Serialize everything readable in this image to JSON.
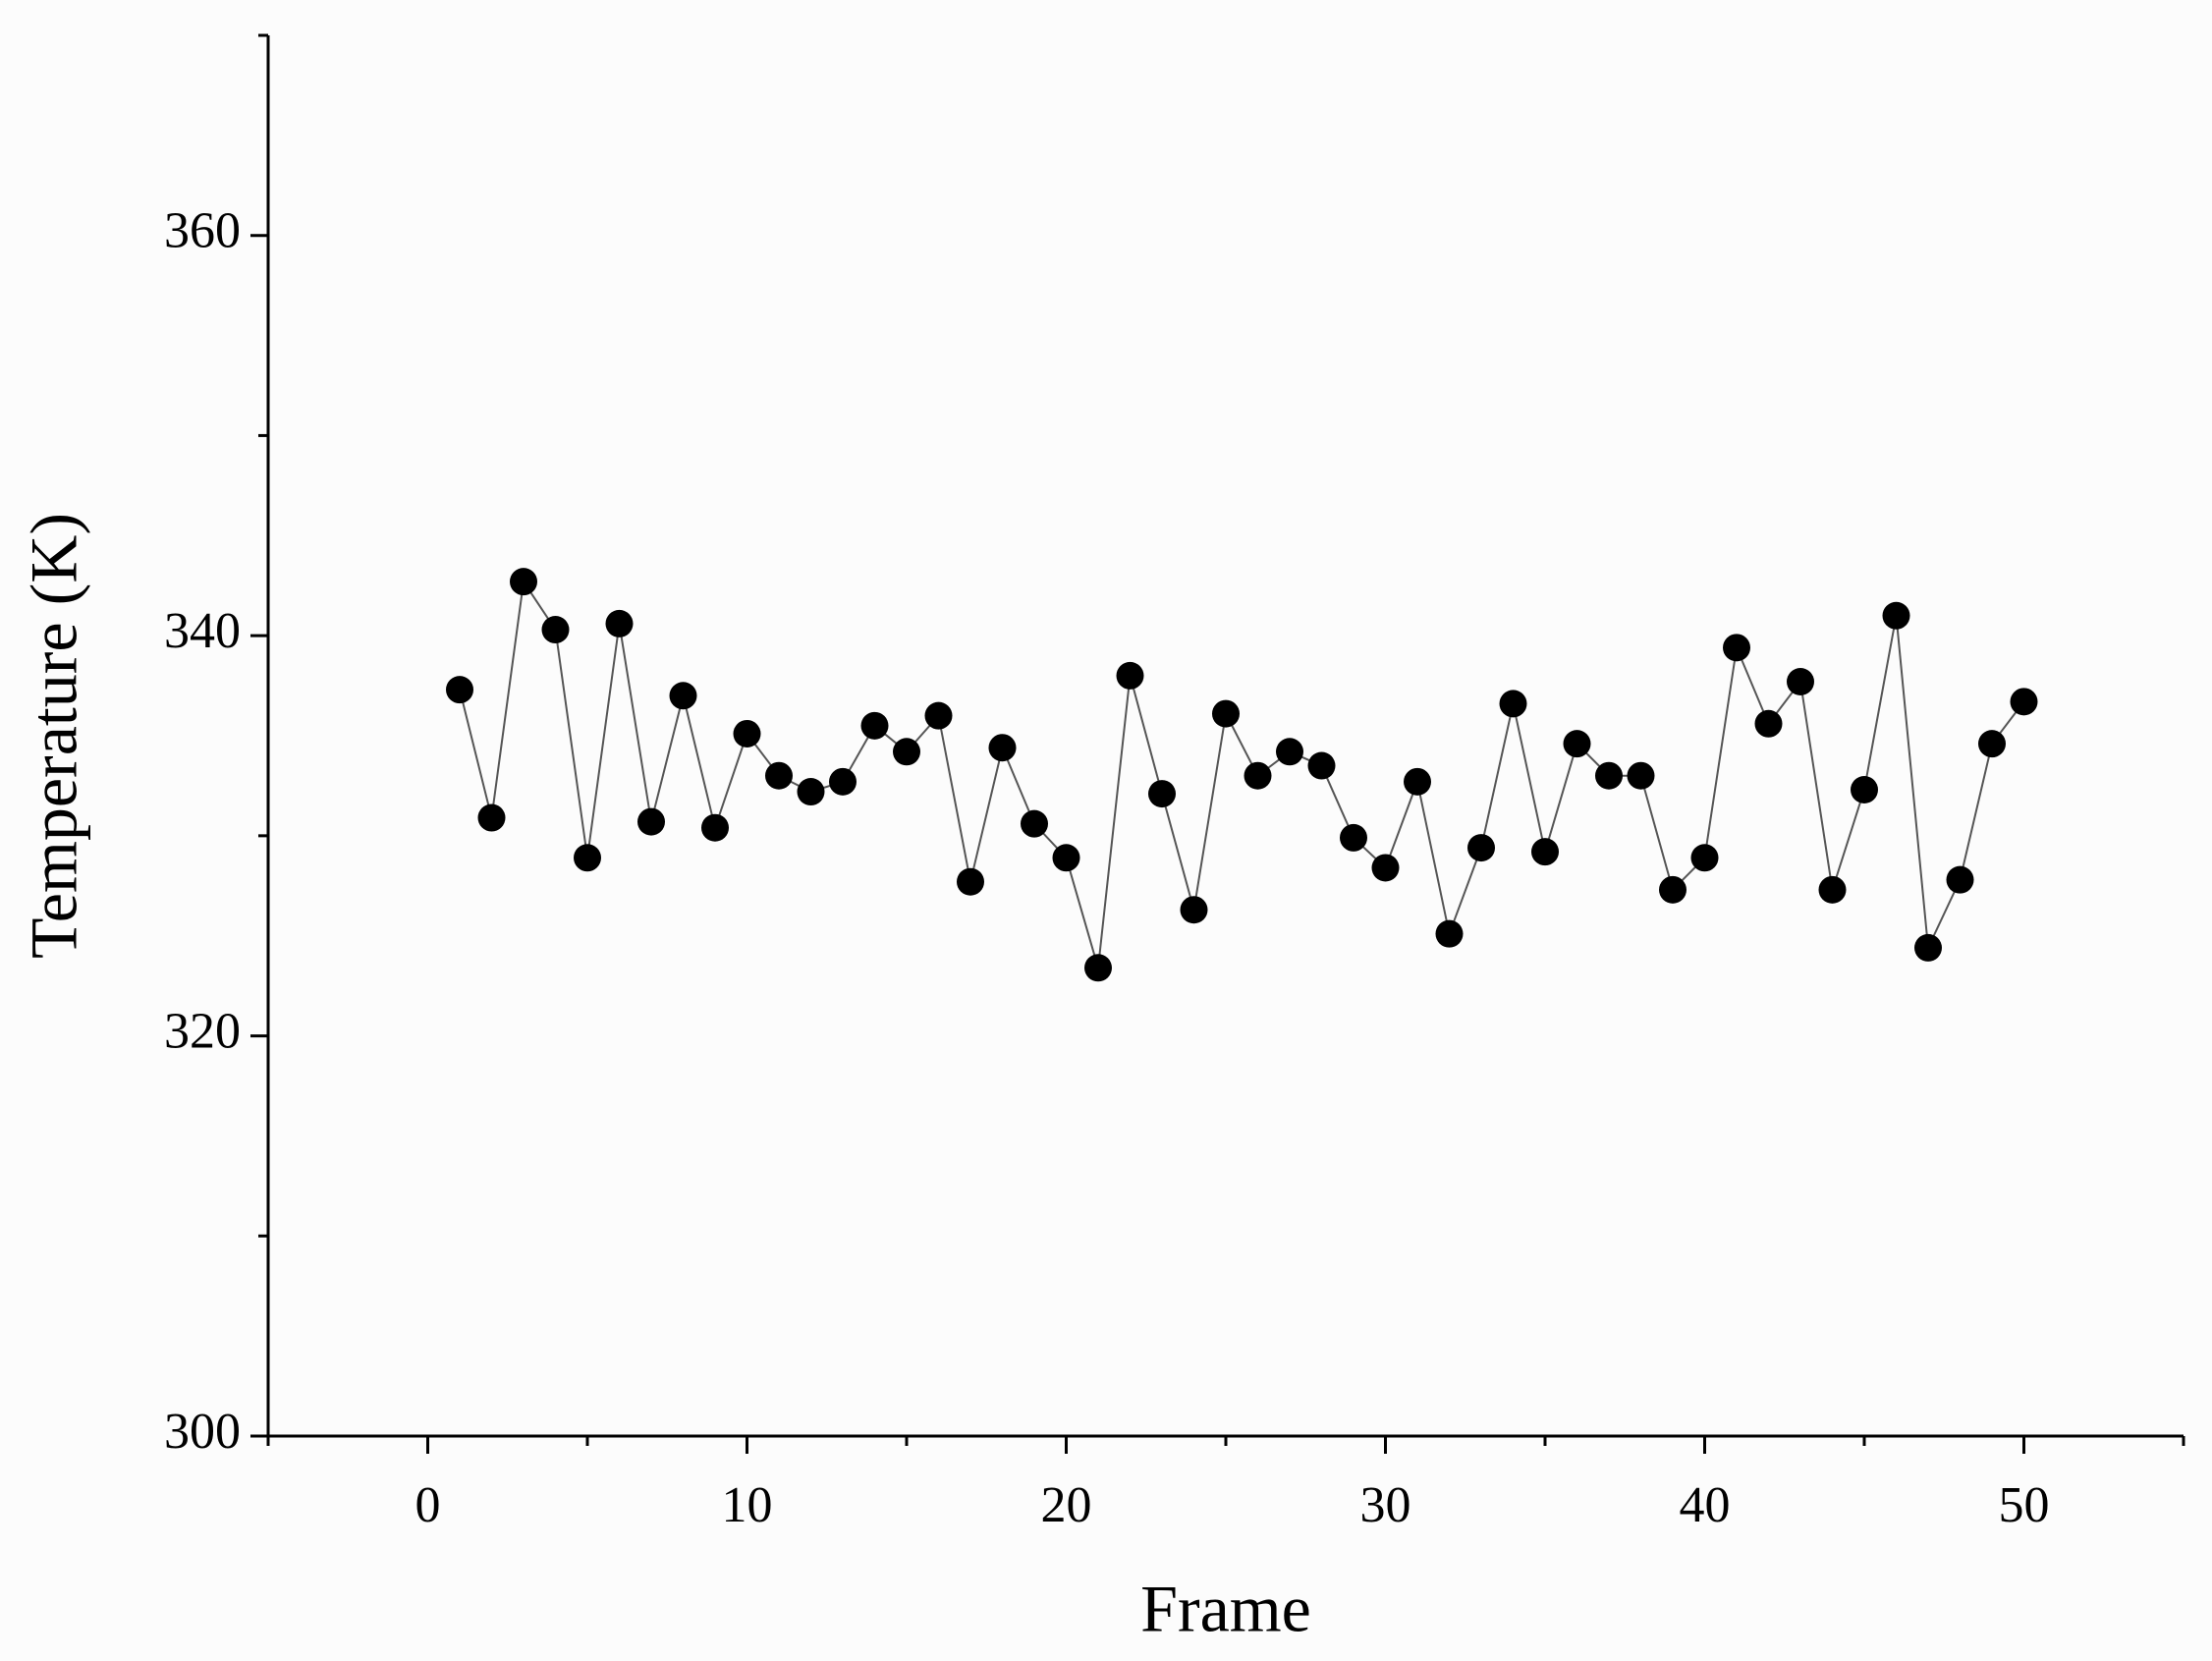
{
  "chart_data": {
    "type": "line",
    "xlabel": "Frame",
    "ylabel": "Temperature (K)",
    "x": [
      1,
      2,
      3,
      4,
      5,
      6,
      7,
      8,
      9,
      10,
      11,
      12,
      13,
      14,
      15,
      16,
      17,
      18,
      19,
      20,
      21,
      22,
      23,
      24,
      25,
      26,
      27,
      28,
      29,
      30,
      31,
      32,
      33,
      34,
      35,
      36,
      37,
      38,
      39,
      40,
      41,
      42,
      43,
      44,
      45,
      46,
      47,
      48,
      49,
      50
    ],
    "series": [
      {
        "color": "#000000",
        "line_color": "#555555",
        "values": [
          337.3,
          330.9,
          342.7,
          340.3,
          328.9,
          340.6,
          330.7,
          337.0,
          330.4,
          335.1,
          333.0,
          332.2,
          332.7,
          335.5,
          334.2,
          336.0,
          327.7,
          334.4,
          330.6,
          328.9,
          323.4,
          338.0,
          332.1,
          326.3,
          336.1,
          333.0,
          334.2,
          333.5,
          329.9,
          328.4,
          332.7,
          325.1,
          329.4,
          336.6,
          329.2,
          334.6,
          333.0,
          333.0,
          327.3,
          328.9,
          339.4,
          335.6,
          337.7,
          327.3,
          332.3,
          341.0,
          324.4,
          327.8,
          334.6,
          336.7
        ]
      }
    ],
    "xlim": [
      -5,
      55
    ],
    "xticks": [
      0,
      10,
      20,
      30,
      40,
      50
    ],
    "xminorticks": [
      -5,
      5,
      15,
      25,
      35,
      45,
      55
    ],
    "ylim": [
      300,
      370
    ],
    "yticks": [
      300,
      320,
      340,
      360
    ],
    "yminorticks": [
      310,
      330,
      350,
      370
    ],
    "grid": false
  }
}
